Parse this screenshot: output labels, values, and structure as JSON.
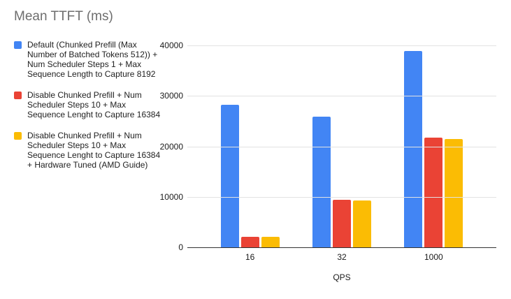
{
  "chart_data": {
    "type": "bar",
    "title": "Mean TTFT (ms)",
    "xlabel": "QPS",
    "ylabel": "",
    "categories": [
      "16",
      "32",
      "1000"
    ],
    "series": [
      {
        "name": "Default (Chunked Prefill (Max Number of Batched Tokens 512)) + Num Scheduler Steps 1 + Max Sequence Length to Capture 8192",
        "color": "#4285F4",
        "values": [
          28250,
          25900,
          38850
        ]
      },
      {
        "name": "Disable Chunked Prefill + Num Scheduler Steps 10 + Max Sequence Lenght to Capture 16384",
        "color": "#EA4335",
        "values": [
          2100,
          9450,
          21800
        ]
      },
      {
        "name": "Disable Chunked Prefill + Num Scheduler Steps 10 + Max Sequence Lenght to Capture 16384 + Hardware Tuned (AMD Guide)",
        "color": "#FBBC04",
        "values": [
          2100,
          9300,
          21400
        ]
      }
    ],
    "ylim": [
      0,
      40000
    ],
    "yticks": [
      0,
      10000,
      20000,
      30000,
      40000
    ],
    "grid": true,
    "legend_position": "left",
    "colors": {
      "title_text": "#6e6e6e",
      "axis_text": "#1a1a1a",
      "legend_text": "#212121",
      "gridline": "#e2e2e2",
      "axis_line": "#333333",
      "background": "#ffffff"
    }
  }
}
